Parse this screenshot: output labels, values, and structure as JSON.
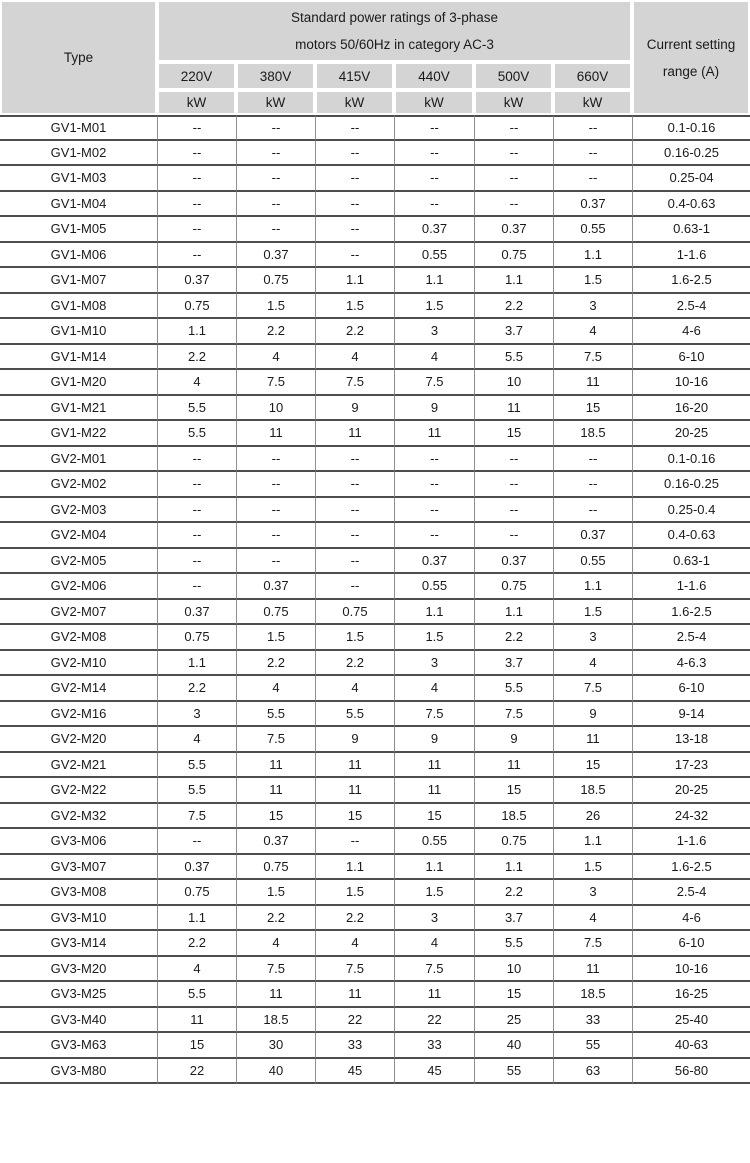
{
  "colors": {
    "header_bg": "#d4d4d4",
    "row_line": "#4d4d4d",
    "column_line": "#8f8f8f",
    "text": "#1a1a1a"
  },
  "table": {
    "header": {
      "type_label": "Type",
      "power_title_line1": "Standard power ratings of 3-phase",
      "power_title_line2": "motors 50/60Hz in category AC-3",
      "current_label_line1": "Current setting",
      "current_label_line2": "range (A)",
      "voltages": [
        "220V",
        "380V",
        "415V",
        "440V",
        "500V",
        "660V"
      ],
      "unit": "kW"
    },
    "rows": [
      {
        "type": "GV1-M01",
        "values": [
          "--",
          "--",
          "--",
          "--",
          "--",
          "--"
        ],
        "range": "0.1-0.16"
      },
      {
        "type": "GV1-M02",
        "values": [
          "--",
          "--",
          "--",
          "--",
          "--",
          "--"
        ],
        "range": "0.16-0.25"
      },
      {
        "type": "GV1-M03",
        "values": [
          "--",
          "--",
          "--",
          "--",
          "--",
          "--"
        ],
        "range": "0.25-04"
      },
      {
        "type": "GV1-M04",
        "values": [
          "--",
          "--",
          "--",
          "--",
          "--",
          "0.37"
        ],
        "range": "0.4-0.63"
      },
      {
        "type": "GV1-M05",
        "values": [
          "--",
          "--",
          "--",
          "0.37",
          "0.37",
          "0.55"
        ],
        "range": "0.63-1"
      },
      {
        "type": "GV1-M06",
        "values": [
          "--",
          "0.37",
          "--",
          "0.55",
          "0.75",
          "1.1"
        ],
        "range": "1-1.6"
      },
      {
        "type": "GV1-M07",
        "values": [
          "0.37",
          "0.75",
          "1.1",
          "1.1",
          "1.1",
          "1.5"
        ],
        "range": "1.6-2.5"
      },
      {
        "type": "GV1-M08",
        "values": [
          "0.75",
          "1.5",
          "1.5",
          "1.5",
          "2.2",
          "3"
        ],
        "range": "2.5-4"
      },
      {
        "type": "GV1-M10",
        "values": [
          "1.1",
          "2.2",
          "2.2",
          "3",
          "3.7",
          "4"
        ],
        "range": "4-6"
      },
      {
        "type": "GV1-M14",
        "values": [
          "2.2",
          "4",
          "4",
          "4",
          "5.5",
          "7.5"
        ],
        "range": "6-10"
      },
      {
        "type": "GV1-M20",
        "values": [
          "4",
          "7.5",
          "7.5",
          "7.5",
          "10",
          "11"
        ],
        "range": "10-16"
      },
      {
        "type": "GV1-M21",
        "values": [
          "5.5",
          "10",
          "9",
          "9",
          "11",
          "15"
        ],
        "range": "16-20"
      },
      {
        "type": "GV1-M22",
        "values": [
          "5.5",
          "11",
          "11",
          "11",
          "15",
          "18.5"
        ],
        "range": "20-25"
      },
      {
        "type": "GV2-M01",
        "values": [
          "--",
          "--",
          "--",
          "--",
          "--",
          "--"
        ],
        "range": "0.1-0.16"
      },
      {
        "type": "GV2-M02",
        "values": [
          "--",
          "--",
          "--",
          "--",
          "--",
          "--"
        ],
        "range": "0.16-0.25"
      },
      {
        "type": "GV2-M03",
        "values": [
          "--",
          "--",
          "--",
          "--",
          "--",
          "--"
        ],
        "range": "0.25-0.4"
      },
      {
        "type": "GV2-M04",
        "values": [
          "--",
          "--",
          "--",
          "--",
          "--",
          "0.37"
        ],
        "range": "0.4-0.63"
      },
      {
        "type": "GV2-M05",
        "values": [
          "--",
          "--",
          "--",
          "0.37",
          "0.37",
          "0.55"
        ],
        "range": "0.63-1"
      },
      {
        "type": "GV2-M06",
        "values": [
          "--",
          "0.37",
          "--",
          "0.55",
          "0.75",
          "1.1"
        ],
        "range": "1-1.6"
      },
      {
        "type": "GV2-M07",
        "values": [
          "0.37",
          "0.75",
          "0.75",
          "1.1",
          "1.1",
          "1.5"
        ],
        "range": "1.6-2.5"
      },
      {
        "type": "GV2-M08",
        "values": [
          "0.75",
          "1.5",
          "1.5",
          "1.5",
          "2.2",
          "3"
        ],
        "range": "2.5-4"
      },
      {
        "type": "GV2-M10",
        "values": [
          "1.1",
          "2.2",
          "2.2",
          "3",
          "3.7",
          "4"
        ],
        "range": "4-6.3"
      },
      {
        "type": "GV2-M14",
        "values": [
          "2.2",
          "4",
          "4",
          "4",
          "5.5",
          "7.5"
        ],
        "range": "6-10"
      },
      {
        "type": "GV2-M16",
        "values": [
          "3",
          "5.5",
          "5.5",
          "7.5",
          "7.5",
          "9"
        ],
        "range": "9-14"
      },
      {
        "type": "GV2-M20",
        "values": [
          "4",
          "7.5",
          "9",
          "9",
          "9",
          "11"
        ],
        "range": "13-18"
      },
      {
        "type": "GV2-M21",
        "values": [
          "5.5",
          "11",
          "11",
          "11",
          "11",
          "15"
        ],
        "range": "17-23"
      },
      {
        "type": "GV2-M22",
        "values": [
          "5.5",
          "11",
          "11",
          "11",
          "15",
          "18.5"
        ],
        "range": "20-25"
      },
      {
        "type": "GV2-M32",
        "values": [
          "7.5",
          "15",
          "15",
          "15",
          "18.5",
          "26"
        ],
        "range": "24-32"
      },
      {
        "type": "GV3-M06",
        "values": [
          "--",
          "0.37",
          "--",
          "0.55",
          "0.75",
          "1.1"
        ],
        "range": "1-1.6"
      },
      {
        "type": "GV3-M07",
        "values": [
          "0.37",
          "0.75",
          "1.1",
          "1.1",
          "1.1",
          "1.5"
        ],
        "range": "1.6-2.5"
      },
      {
        "type": "GV3-M08",
        "values": [
          "0.75",
          "1.5",
          "1.5",
          "1.5",
          "2.2",
          "3"
        ],
        "range": "2.5-4"
      },
      {
        "type": "GV3-M10",
        "values": [
          "1.1",
          "2.2",
          "2.2",
          "3",
          "3.7",
          "4"
        ],
        "range": "4-6"
      },
      {
        "type": "GV3-M14",
        "values": [
          "2.2",
          "4",
          "4",
          "4",
          "5.5",
          "7.5"
        ],
        "range": "6-10"
      },
      {
        "type": "GV3-M20",
        "values": [
          "4",
          "7.5",
          "7.5",
          "7.5",
          "10",
          "11"
        ],
        "range": "10-16"
      },
      {
        "type": "GV3-M25",
        "values": [
          "5.5",
          "11",
          "11",
          "11",
          "15",
          "18.5"
        ],
        "range": "16-25"
      },
      {
        "type": "GV3-M40",
        "values": [
          "11",
          "18.5",
          "22",
          "22",
          "25",
          "33"
        ],
        "range": "25-40"
      },
      {
        "type": "GV3-M63",
        "values": [
          "15",
          "30",
          "33",
          "33",
          "40",
          "55"
        ],
        "range": "40-63"
      },
      {
        "type": "GV3-M80",
        "values": [
          "22",
          "40",
          "45",
          "45",
          "55",
          "63"
        ],
        "range": "56-80"
      }
    ]
  }
}
